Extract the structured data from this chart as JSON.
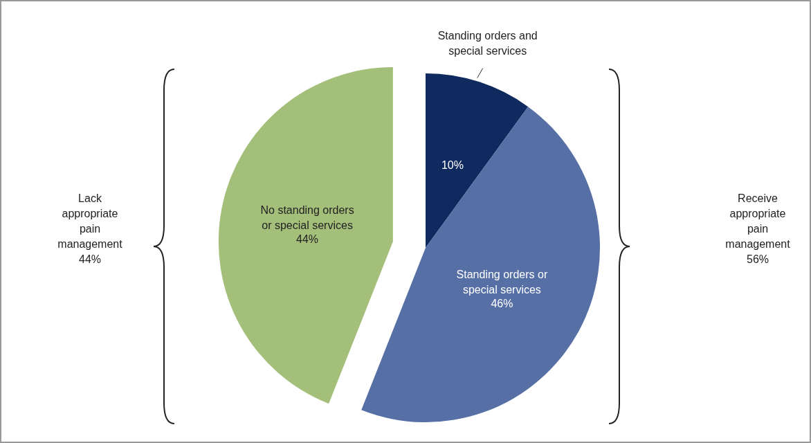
{
  "chart_data": {
    "type": "pie",
    "categories": [
      "Standing orders and special services",
      "Standing orders or special services",
      "No standing orders or special services"
    ],
    "values": [
      10,
      46,
      44
    ],
    "colors": [
      "#0f2a5e",
      "#5670a6",
      "#a3bf7a"
    ],
    "value_labels": [
      "10%",
      "46%",
      "44%"
    ],
    "annotations": [
      "Lack appropriate pain management 44%",
      "Receive appropriate pain management 56%"
    ]
  }
}
